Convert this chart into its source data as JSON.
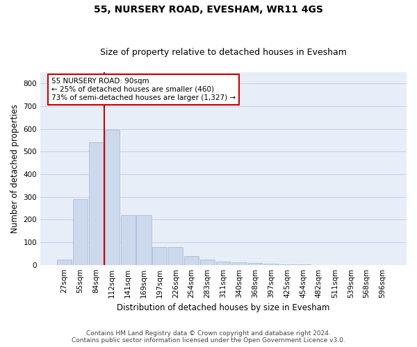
{
  "title": "55, NURSERY ROAD, EVESHAM, WR11 4GS",
  "subtitle": "Size of property relative to detached houses in Evesham",
  "xlabel": "Distribution of detached houses by size in Evesham",
  "ylabel": "Number of detached properties",
  "bin_labels": [
    "27sqm",
    "55sqm",
    "84sqm",
    "112sqm",
    "141sqm",
    "169sqm",
    "197sqm",
    "226sqm",
    "254sqm",
    "283sqm",
    "311sqm",
    "340sqm",
    "368sqm",
    "397sqm",
    "425sqm",
    "454sqm",
    "482sqm",
    "511sqm",
    "539sqm",
    "568sqm",
    "596sqm"
  ],
  "bar_values": [
    25,
    290,
    540,
    595,
    220,
    220,
    80,
    80,
    38,
    25,
    15,
    10,
    7,
    4,
    2,
    1,
    0,
    0,
    0,
    0,
    0
  ],
  "bar_color": "#ccd9ec",
  "bar_edgecolor": "#aabdd8",
  "red_line_x": 2.5,
  "annotation_text": "55 NURSERY ROAD: 90sqm\n← 25% of detached houses are smaller (460)\n73% of semi-detached houses are larger (1,327) →",
  "annotation_box_color": "#ffffff",
  "annotation_box_edgecolor": "#cc0000",
  "ylim": [
    0,
    850
  ],
  "yticks": [
    0,
    100,
    200,
    300,
    400,
    500,
    600,
    700,
    800
  ],
  "grid_color": "#c8d4e8",
  "background_color": "#e8eef8",
  "footer_line1": "Contains HM Land Registry data © Crown copyright and database right 2024.",
  "footer_line2": "Contains public sector information licensed under the Open Government Licence v3.0.",
  "title_fontsize": 10,
  "subtitle_fontsize": 9,
  "axis_label_fontsize": 8.5,
  "tick_fontsize": 7.5,
  "annotation_fontsize": 7.5,
  "footer_fontsize": 6.5
}
